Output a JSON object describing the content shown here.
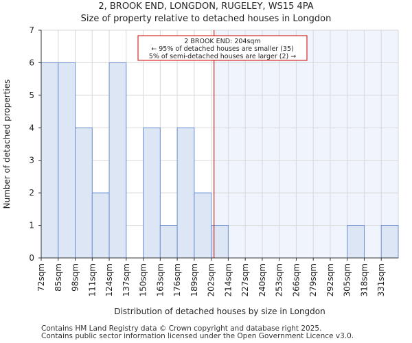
{
  "chart_data": {
    "type": "bar",
    "title": "2, BROOK END, LONGDON, RUGELEY, WS15 4PA",
    "subtitle": "Size of property relative to detached houses in Longdon",
    "xlabel": "Distribution of detached houses by size in Longdon",
    "ylabel": "Number of detached properties",
    "categories": [
      "72sqm",
      "85sqm",
      "98sqm",
      "111sqm",
      "124sqm",
      "137sqm",
      "150sqm",
      "163sqm",
      "176sqm",
      "189sqm",
      "202sqm",
      "214sqm",
      "227sqm",
      "240sqm",
      "253sqm",
      "266sqm",
      "279sqm",
      "292sqm",
      "305sqm",
      "318sqm",
      "331sqm"
    ],
    "values": [
      6,
      6,
      4,
      2,
      6,
      0,
      4,
      1,
      4,
      2,
      1,
      0,
      0,
      0,
      0,
      0,
      0,
      0,
      1,
      0,
      1
    ],
    "ylim": [
      0,
      7
    ],
    "yticks": [
      0,
      1,
      2,
      3,
      4,
      5,
      6,
      7
    ],
    "marker": {
      "value_sqm": 204,
      "line1": "2 BROOK END: 204sqm",
      "line2": "← 95% of detached houses are smaller (35)",
      "line3": "5% of semi-detached houses are larger (2) →"
    },
    "colors": {
      "bar_fill": "#dce6f5",
      "bar_stroke": "#6b8fd0",
      "marker": "#cc0000",
      "highlight_bg": "#f0f4fc",
      "grid": "#d8d8d8"
    }
  },
  "footer": {
    "line1": "Contains HM Land Registry data © Crown copyright and database right 2025.",
    "line2": "Contains public sector information licensed under the Open Government Licence v3.0."
  }
}
